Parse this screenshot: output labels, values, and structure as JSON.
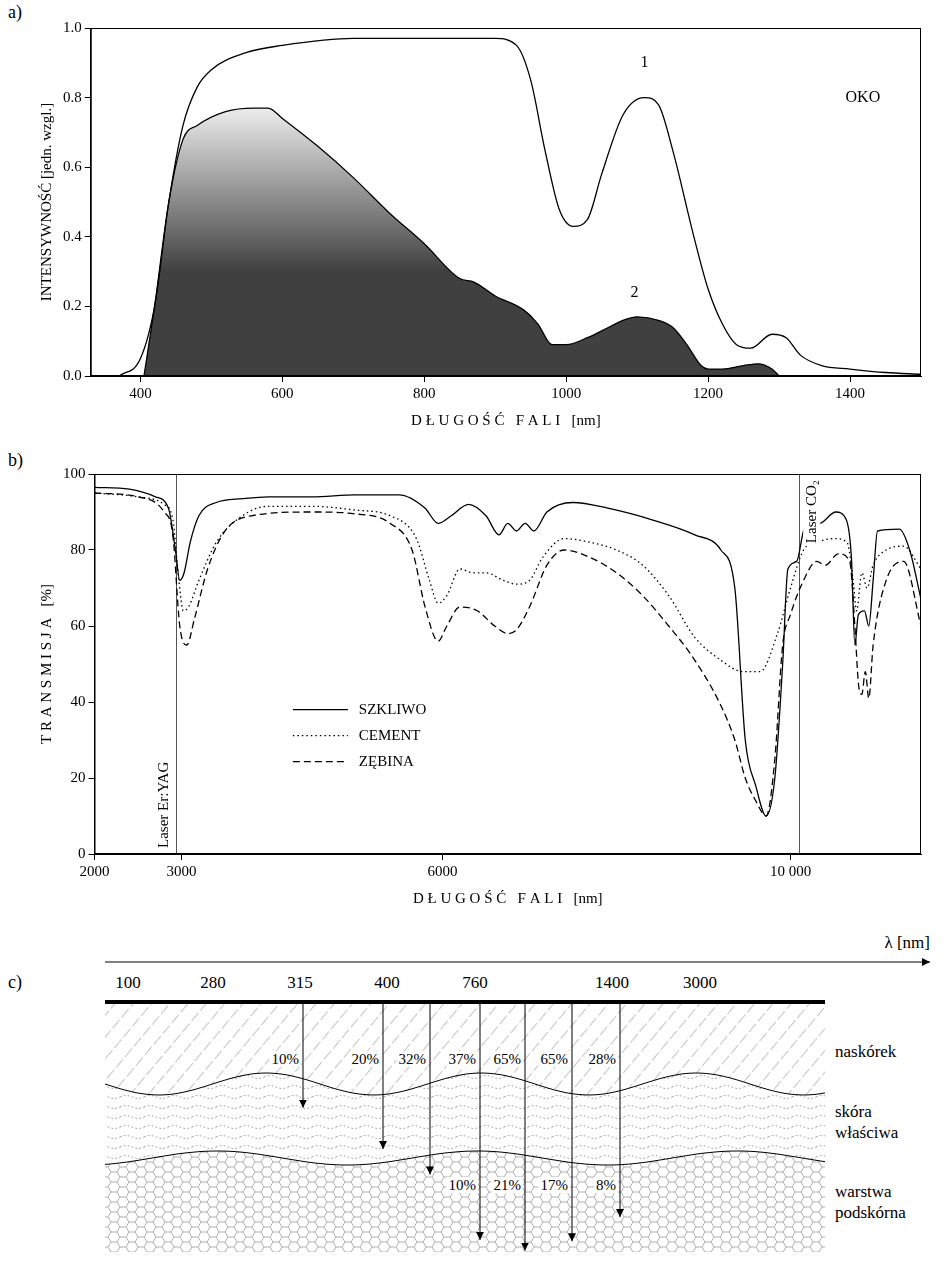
{
  "chart_data": [
    {
      "panel": "a)",
      "type": "line",
      "xlabel": "D Ł U G O Ś Ć   F A L I   [nm]",
      "ylabel": "INTENSYWNOŚĆ [jedn. wzgl.]",
      "annotations": [
        "OKO"
      ],
      "xlim": [
        330,
        1500
      ],
      "xticks": [
        400,
        600,
        800,
        1000,
        1200,
        1400
      ],
      "ylim": [
        0,
        1
      ],
      "yticks": [
        {
          "value": 0,
          "label": "0.0"
        },
        0.2,
        0.4,
        0.6,
        0.8,
        {
          "value": 1,
          "label": "1.0"
        }
      ],
      "grid": false,
      "series": [
        {
          "name": "1",
          "type": "line",
          "color": "#000000",
          "x": [
            370,
            400,
            420,
            440,
            460,
            480,
            500,
            550,
            600,
            700,
            800,
            900,
            930,
            950,
            970,
            990,
            1010,
            1030,
            1050,
            1080,
            1110,
            1130,
            1150,
            1180,
            1200,
            1220,
            1240,
            1260,
            1290,
            1310,
            1330,
            1360,
            1400,
            1450,
            1500
          ],
          "values": [
            0,
            0.05,
            0.2,
            0.5,
            0.72,
            0.83,
            0.88,
            0.93,
            0.95,
            0.97,
            0.97,
            0.97,
            0.95,
            0.85,
            0.65,
            0.48,
            0.43,
            0.45,
            0.58,
            0.75,
            0.8,
            0.78,
            0.65,
            0.4,
            0.25,
            0.15,
            0.09,
            0.08,
            0.12,
            0.11,
            0.06,
            0.03,
            0.02,
            0.01,
            0.005
          ]
        },
        {
          "name": "2",
          "type": "area",
          "color": "#404040",
          "x": [
            405,
            420,
            440,
            460,
            480,
            520,
            560,
            580,
            600,
            650,
            700,
            750,
            800,
            850,
            870,
            900,
            940,
            960,
            980,
            1000,
            1030,
            1060,
            1080,
            1100,
            1130,
            1150,
            1170,
            1190,
            1200,
            1220,
            1250,
            1270,
            1290,
            1300
          ],
          "values": [
            0,
            0.2,
            0.5,
            0.68,
            0.72,
            0.76,
            0.77,
            0.77,
            0.74,
            0.66,
            0.57,
            0.47,
            0.38,
            0.28,
            0.27,
            0.23,
            0.19,
            0.15,
            0.09,
            0.09,
            0.11,
            0.14,
            0.16,
            0.17,
            0.16,
            0.14,
            0.09,
            0.03,
            0.02,
            0.02,
            0.03,
            0.035,
            0.02,
            0
          ]
        }
      ]
    },
    {
      "panel": "b)",
      "type": "line",
      "xlabel": "D Ł U G O Ś Ć   F A L I   [nm]",
      "ylabel": "T R A N S M I S J A   [%]",
      "xlim": [
        2000,
        11500
      ],
      "xticks": [
        2000,
        3000,
        6000,
        {
          "value": 10000,
          "label": "10 000"
        }
      ],
      "ylim": [
        0,
        100
      ],
      "yticks": [
        0,
        20,
        40,
        60,
        80,
        100
      ],
      "grid": false,
      "legend": "lower left",
      "reference_lines": [
        {
          "x": 2940,
          "label": "Laser Er:YAG"
        },
        {
          "x": 10100,
          "label": "Laser CO₂"
        }
      ],
      "series": [
        {
          "name": "SZKLIWO",
          "color": "#000000",
          "line_style": "solid",
          "x": [
            2000,
            2400,
            2700,
            2850,
            2930,
            2980,
            3030,
            3100,
            3200,
            3400,
            3700,
            4000,
            4500,
            5000,
            5500,
            5800,
            5950,
            6100,
            6300,
            6500,
            6650,
            6750,
            6850,
            6950,
            7050,
            7200,
            7500,
            7900,
            8400,
            8900,
            9200,
            9360,
            9480,
            9600,
            9720,
            9820,
            9910,
            9970,
            10070,
            10150,
            10240,
            10330,
            10520,
            10640,
            10700,
            10740,
            10780,
            10850,
            10900,
            10950,
            11000,
            11250,
            11370,
            11500
          ],
          "values": [
            96.5,
            96,
            94,
            91,
            80,
            72,
            74,
            82,
            89,
            92.5,
            93.5,
            94,
            94,
            94.5,
            94.5,
            91,
            87,
            89,
            92,
            89,
            84,
            87,
            85,
            87,
            85,
            90,
            92.5,
            91,
            88,
            84,
            80,
            70,
            30,
            18,
            10,
            20,
            50,
            75,
            77,
            85,
            88,
            87,
            90,
            88,
            78,
            55,
            63,
            64,
            60,
            72,
            85,
            85.5,
            80,
            67
          ]
        },
        {
          "name": "CEMENT",
          "color": "#000000",
          "line_style": "dotted",
          "x": [
            2000,
            2500,
            2800,
            2900,
            2970,
            3020,
            3080,
            3200,
            3400,
            3700,
            4000,
            4500,
            5000,
            5400,
            5700,
            5850,
            5950,
            6050,
            6200,
            6350,
            6500,
            6700,
            6850,
            7000,
            7150,
            7400,
            7700,
            8000,
            8300,
            8600,
            8900,
            9200,
            9450,
            9650,
            9850,
            10000,
            10150,
            10300,
            10500,
            10650,
            10720,
            10760,
            10820,
            10880,
            10950,
            11100,
            11300,
            11500
          ],
          "values": [
            95,
            94,
            92,
            88,
            72,
            64,
            65,
            72,
            82,
            89,
            91.5,
            91.5,
            90.5,
            89,
            83,
            72,
            66,
            68,
            75,
            74,
            74,
            72,
            71,
            72,
            78,
            83,
            82,
            80,
            76,
            68,
            57,
            51,
            48,
            48,
            58,
            70,
            80,
            82,
            83,
            82,
            72,
            64,
            74,
            70,
            76,
            80,
            81,
            75
          ]
        },
        {
          "name": "ZĘBINA",
          "color": "#000000",
          "line_style": "dashed",
          "x": [
            2000,
            2500,
            2800,
            2900,
            2980,
            3060,
            3150,
            3300,
            3500,
            3800,
            4500,
            5000,
            5400,
            5650,
            5800,
            5950,
            6050,
            6200,
            6400,
            6600,
            6750,
            6850,
            7000,
            7200,
            7400,
            7700,
            8000,
            8300,
            8600,
            8870,
            9180,
            9360,
            9480,
            9600,
            9720,
            9820,
            9910,
            10000,
            10150,
            10300,
            10400,
            10550,
            10680,
            10740,
            10780,
            10820,
            10860,
            10900,
            10950,
            11100,
            11300,
            11500
          ],
          "values": [
            95,
            94,
            90,
            84,
            60,
            55,
            62,
            75,
            85,
            89,
            90,
            89.5,
            87,
            80,
            65,
            56,
            60,
            65,
            64,
            60,
            58,
            59,
            65,
            76,
            80,
            78,
            74,
            68,
            60,
            52,
            40,
            30,
            20,
            14,
            10,
            25,
            55,
            63,
            72,
            77,
            76,
            79,
            77,
            60,
            45,
            42,
            48,
            41,
            55,
            72,
            77,
            60
          ]
        }
      ]
    }
  ],
  "diagram": {
    "panel": "c)",
    "axis_label": "λ [nm]",
    "wavelengths": [
      100,
      280,
      315,
      400,
      760,
      1400,
      3000
    ],
    "layers": [
      "naskórek",
      "skóra właściwa",
      "warstwa podskórna"
    ],
    "arrows": [
      {
        "top_label": "10%",
        "reaches": "skóra właściwa"
      },
      {
        "top_label": "20%",
        "reaches": "skóra właściwa"
      },
      {
        "top_label": "32%",
        "reaches": "warstwa podskórna"
      },
      {
        "top_label": "37%",
        "bottom_label": "10%",
        "reaches": "warstwa podskórna"
      },
      {
        "top_label": "65%",
        "bottom_label": "21%",
        "reaches": "warstwa podskórna"
      },
      {
        "top_label": "65%",
        "bottom_label": "17%",
        "reaches": "warstwa podskórna"
      },
      {
        "top_label": "28%",
        "bottom_label": "8%",
        "reaches": "warstwa podskórna"
      }
    ]
  }
}
